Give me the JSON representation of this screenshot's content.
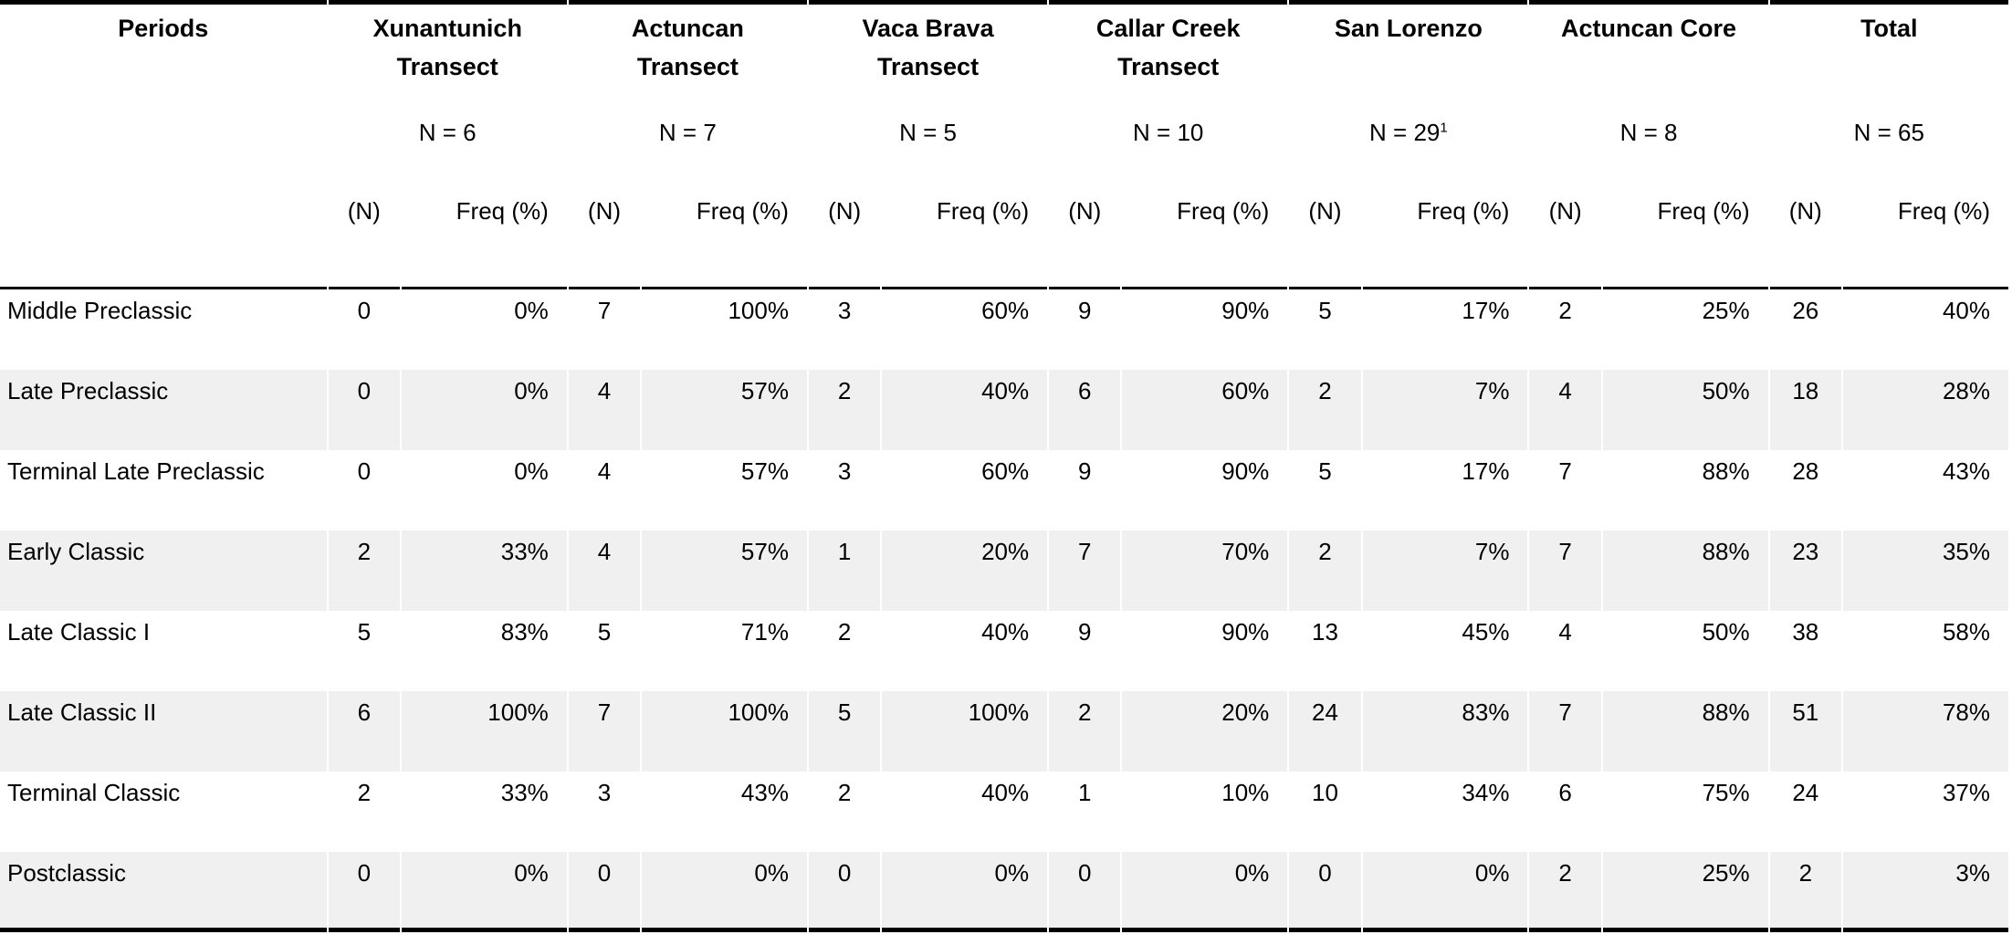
{
  "table": {
    "periods_header": "Periods",
    "subheaders": {
      "n": "(N)",
      "freq": "Freq (%)"
    },
    "groups": [
      {
        "title": "Xunantunich Transect",
        "n_label": "N = 6"
      },
      {
        "title": "Actuncan Transect",
        "n_label": "N = 7"
      },
      {
        "title": "Vaca Brava Transect",
        "n_label": "N = 5"
      },
      {
        "title": "Callar Creek Transect",
        "n_label": "N = 10"
      },
      {
        "title": "San Lorenzo",
        "n_label": "N = 29",
        "n_superscript": "1"
      },
      {
        "title": "Actuncan Core",
        "n_label": "N = 8"
      },
      {
        "title": "Total",
        "n_label": "N = 65"
      }
    ],
    "rows": [
      {
        "period": "Middle Preclassic",
        "values": [
          {
            "n": "0",
            "freq": "0%"
          },
          {
            "n": "7",
            "freq": "100%"
          },
          {
            "n": "3",
            "freq": "60%"
          },
          {
            "n": "9",
            "freq": "90%"
          },
          {
            "n": "5",
            "freq": "17%"
          },
          {
            "n": "2",
            "freq": "25%"
          },
          {
            "n": "26",
            "freq": "40%"
          }
        ]
      },
      {
        "period": "Late Preclassic",
        "values": [
          {
            "n": "0",
            "freq": "0%"
          },
          {
            "n": "4",
            "freq": "57%"
          },
          {
            "n": "2",
            "freq": "40%"
          },
          {
            "n": "6",
            "freq": "60%"
          },
          {
            "n": "2",
            "freq": "7%"
          },
          {
            "n": "4",
            "freq": "50%"
          },
          {
            "n": "18",
            "freq": "28%"
          }
        ]
      },
      {
        "period": "Terminal Late Preclassic",
        "values": [
          {
            "n": "0",
            "freq": "0%"
          },
          {
            "n": "4",
            "freq": "57%"
          },
          {
            "n": "3",
            "freq": "60%"
          },
          {
            "n": "9",
            "freq": "90%"
          },
          {
            "n": "5",
            "freq": "17%"
          },
          {
            "n": "7",
            "freq": "88%"
          },
          {
            "n": "28",
            "freq": "43%"
          }
        ]
      },
      {
        "period": "Early Classic",
        "values": [
          {
            "n": "2",
            "freq": "33%"
          },
          {
            "n": "4",
            "freq": "57%"
          },
          {
            "n": "1",
            "freq": "20%"
          },
          {
            "n": "7",
            "freq": "70%"
          },
          {
            "n": "2",
            "freq": "7%"
          },
          {
            "n": "7",
            "freq": "88%"
          },
          {
            "n": "23",
            "freq": "35%"
          }
        ]
      },
      {
        "period": "Late Classic I",
        "values": [
          {
            "n": "5",
            "freq": "83%"
          },
          {
            "n": "5",
            "freq": "71%"
          },
          {
            "n": "2",
            "freq": "40%"
          },
          {
            "n": "9",
            "freq": "90%"
          },
          {
            "n": "13",
            "freq": "45%"
          },
          {
            "n": "4",
            "freq": "50%"
          },
          {
            "n": "38",
            "freq": "58%"
          }
        ]
      },
      {
        "period": "Late Classic II",
        "values": [
          {
            "n": "6",
            "freq": "100%"
          },
          {
            "n": "7",
            "freq": "100%"
          },
          {
            "n": "5",
            "freq": "100%"
          },
          {
            "n": "2",
            "freq": "20%"
          },
          {
            "n": "24",
            "freq": "83%"
          },
          {
            "n": "7",
            "freq": "88%"
          },
          {
            "n": "51",
            "freq": "78%"
          }
        ]
      },
      {
        "period": "Terminal Classic",
        "values": [
          {
            "n": "2",
            "freq": "33%"
          },
          {
            "n": "3",
            "freq": "43%"
          },
          {
            "n": "2",
            "freq": "40%"
          },
          {
            "n": "1",
            "freq": "10%"
          },
          {
            "n": "10",
            "freq": "34%"
          },
          {
            "n": "6",
            "freq": "75%"
          },
          {
            "n": "24",
            "freq": "37%"
          }
        ]
      },
      {
        "period": "Postclassic",
        "values": [
          {
            "n": "0",
            "freq": "0%"
          },
          {
            "n": "0",
            "freq": "0%"
          },
          {
            "n": "0",
            "freq": "0%"
          },
          {
            "n": "0",
            "freq": "0%"
          },
          {
            "n": "0",
            "freq": "0%"
          },
          {
            "n": "2",
            "freq": "25%"
          },
          {
            "n": "2",
            "freq": "3%"
          }
        ]
      }
    ],
    "style": {
      "stripe_color": "#f0f0f0",
      "rule_color": "#000000"
    }
  }
}
